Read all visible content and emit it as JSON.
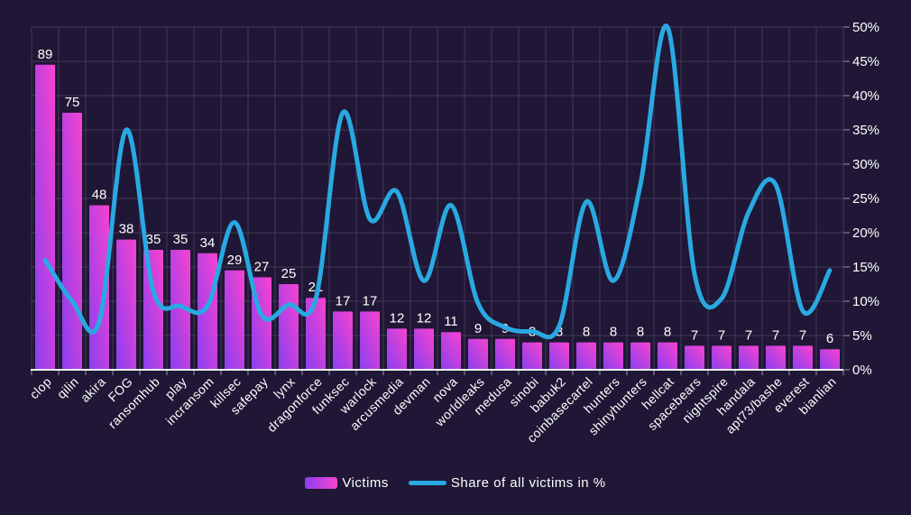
{
  "chart_data": {
    "type": "bar+line",
    "title": "",
    "categories": [
      "clop",
      "qilin",
      "akira",
      "FOG",
      "ransomhub",
      "play",
      "incransom",
      "killsec",
      "safepay",
      "lynx",
      "dragonforce",
      "funksec",
      "warlock",
      "arcusmedia",
      "devman",
      "nova",
      "worldleaks",
      "medusa",
      "sinobi",
      "babuk2",
      "coinbasecartel",
      "hunters",
      "shinyhunters",
      "hellcat",
      "spacebears",
      "nightspire",
      "handala",
      "apt73/bashe",
      "everest",
      "bianlian"
    ],
    "series": [
      {
        "name": "Victims",
        "type": "bar",
        "values": [
          89,
          75,
          48,
          38,
          35,
          35,
          34,
          29,
          27,
          25,
          21,
          17,
          17,
          12,
          12,
          11,
          9,
          9,
          8,
          8,
          8,
          8,
          8,
          8,
          7,
          7,
          7,
          7,
          7,
          6
        ]
      },
      {
        "name": "Share of all victims in %",
        "type": "line",
        "values": [
          16,
          10,
          7,
          35,
          11.5,
          9.3,
          9.3,
          21.5,
          8,
          9.5,
          10.3,
          37.5,
          22,
          26,
          13,
          24,
          9.7,
          6.2,
          5.6,
          6.4,
          24.5,
          13,
          27,
          50,
          14,
          10.4,
          23,
          27,
          8.6,
          14.5
        ]
      }
    ],
    "right_axis": {
      "ticks": [
        "0%",
        "5%",
        "10%",
        "15%",
        "20%",
        "25%",
        "30%",
        "35%",
        "40%",
        "45%",
        "50%"
      ],
      "min": 0,
      "max": 50
    },
    "left_axis": {
      "min": 0,
      "max": 100,
      "labels_visible": false
    },
    "grid": true,
    "legend_position": "bottom",
    "colors": {
      "background": "#1f1735",
      "grid": "#413a58",
      "axis": "#f2f0f7",
      "tick": "#9a94ad",
      "text": "#ffffff",
      "bar_gradient_bottom": "#8a3ff0",
      "bar_gradient_top": "#f843cf",
      "line": "#29a9e2"
    }
  },
  "legend": {
    "victims_label": "Victims",
    "share_label": "Share of all victims in %"
  }
}
